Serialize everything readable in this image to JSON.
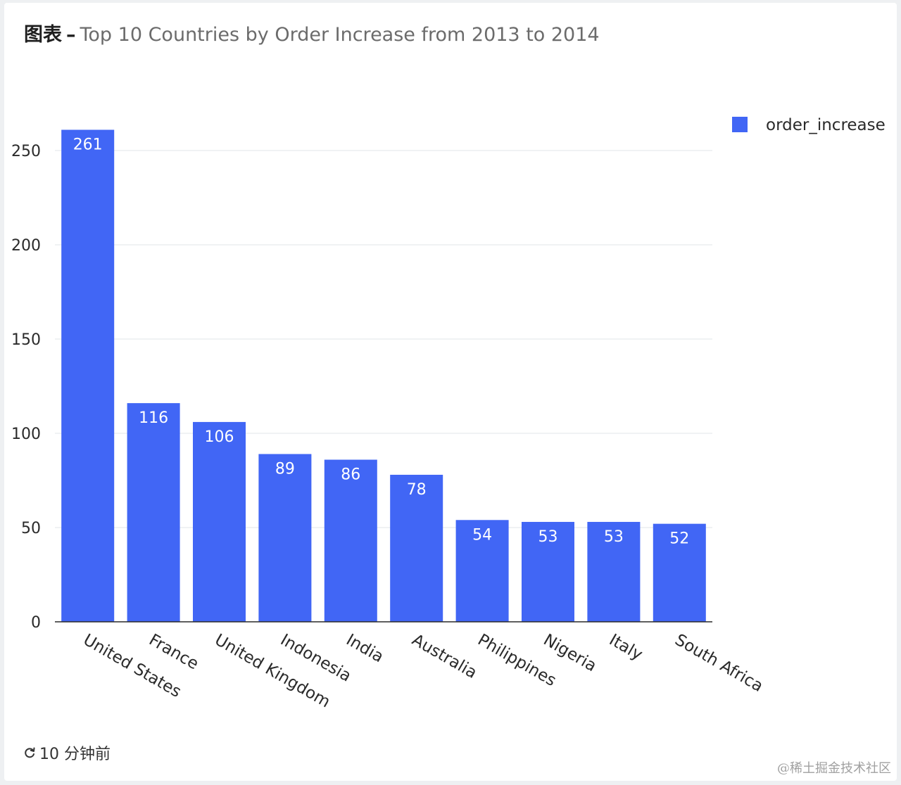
{
  "header": {
    "prefix": "图表",
    "dash": "–",
    "title": "Top 10 Countries by Order Increase from 2013 to 2014"
  },
  "footer": {
    "refresh_icon": "refresh-icon",
    "time_label": "10 分钟前"
  },
  "watermark": "@稀土掘金技术社区",
  "colors": {
    "bar": "#4166f5"
  },
  "chart_data": {
    "type": "bar",
    "title": "Top 10 Countries by Order Increase from 2013 to 2014",
    "xlabel": "",
    "ylabel": "",
    "categories": [
      "United States",
      "France",
      "United Kingdom",
      "Indonesia",
      "India",
      "Australia",
      "Philippines",
      "Nigeria",
      "Italy",
      "South Africa"
    ],
    "series": [
      {
        "name": "order_increase",
        "values": [
          261,
          116,
          106,
          89,
          86,
          78,
          54,
          53,
          53,
          52
        ]
      }
    ],
    "ylim": [
      0,
      250
    ],
    "yticks": [
      0,
      50,
      100,
      150,
      200,
      250
    ],
    "grid": true,
    "legend": "top-right"
  }
}
